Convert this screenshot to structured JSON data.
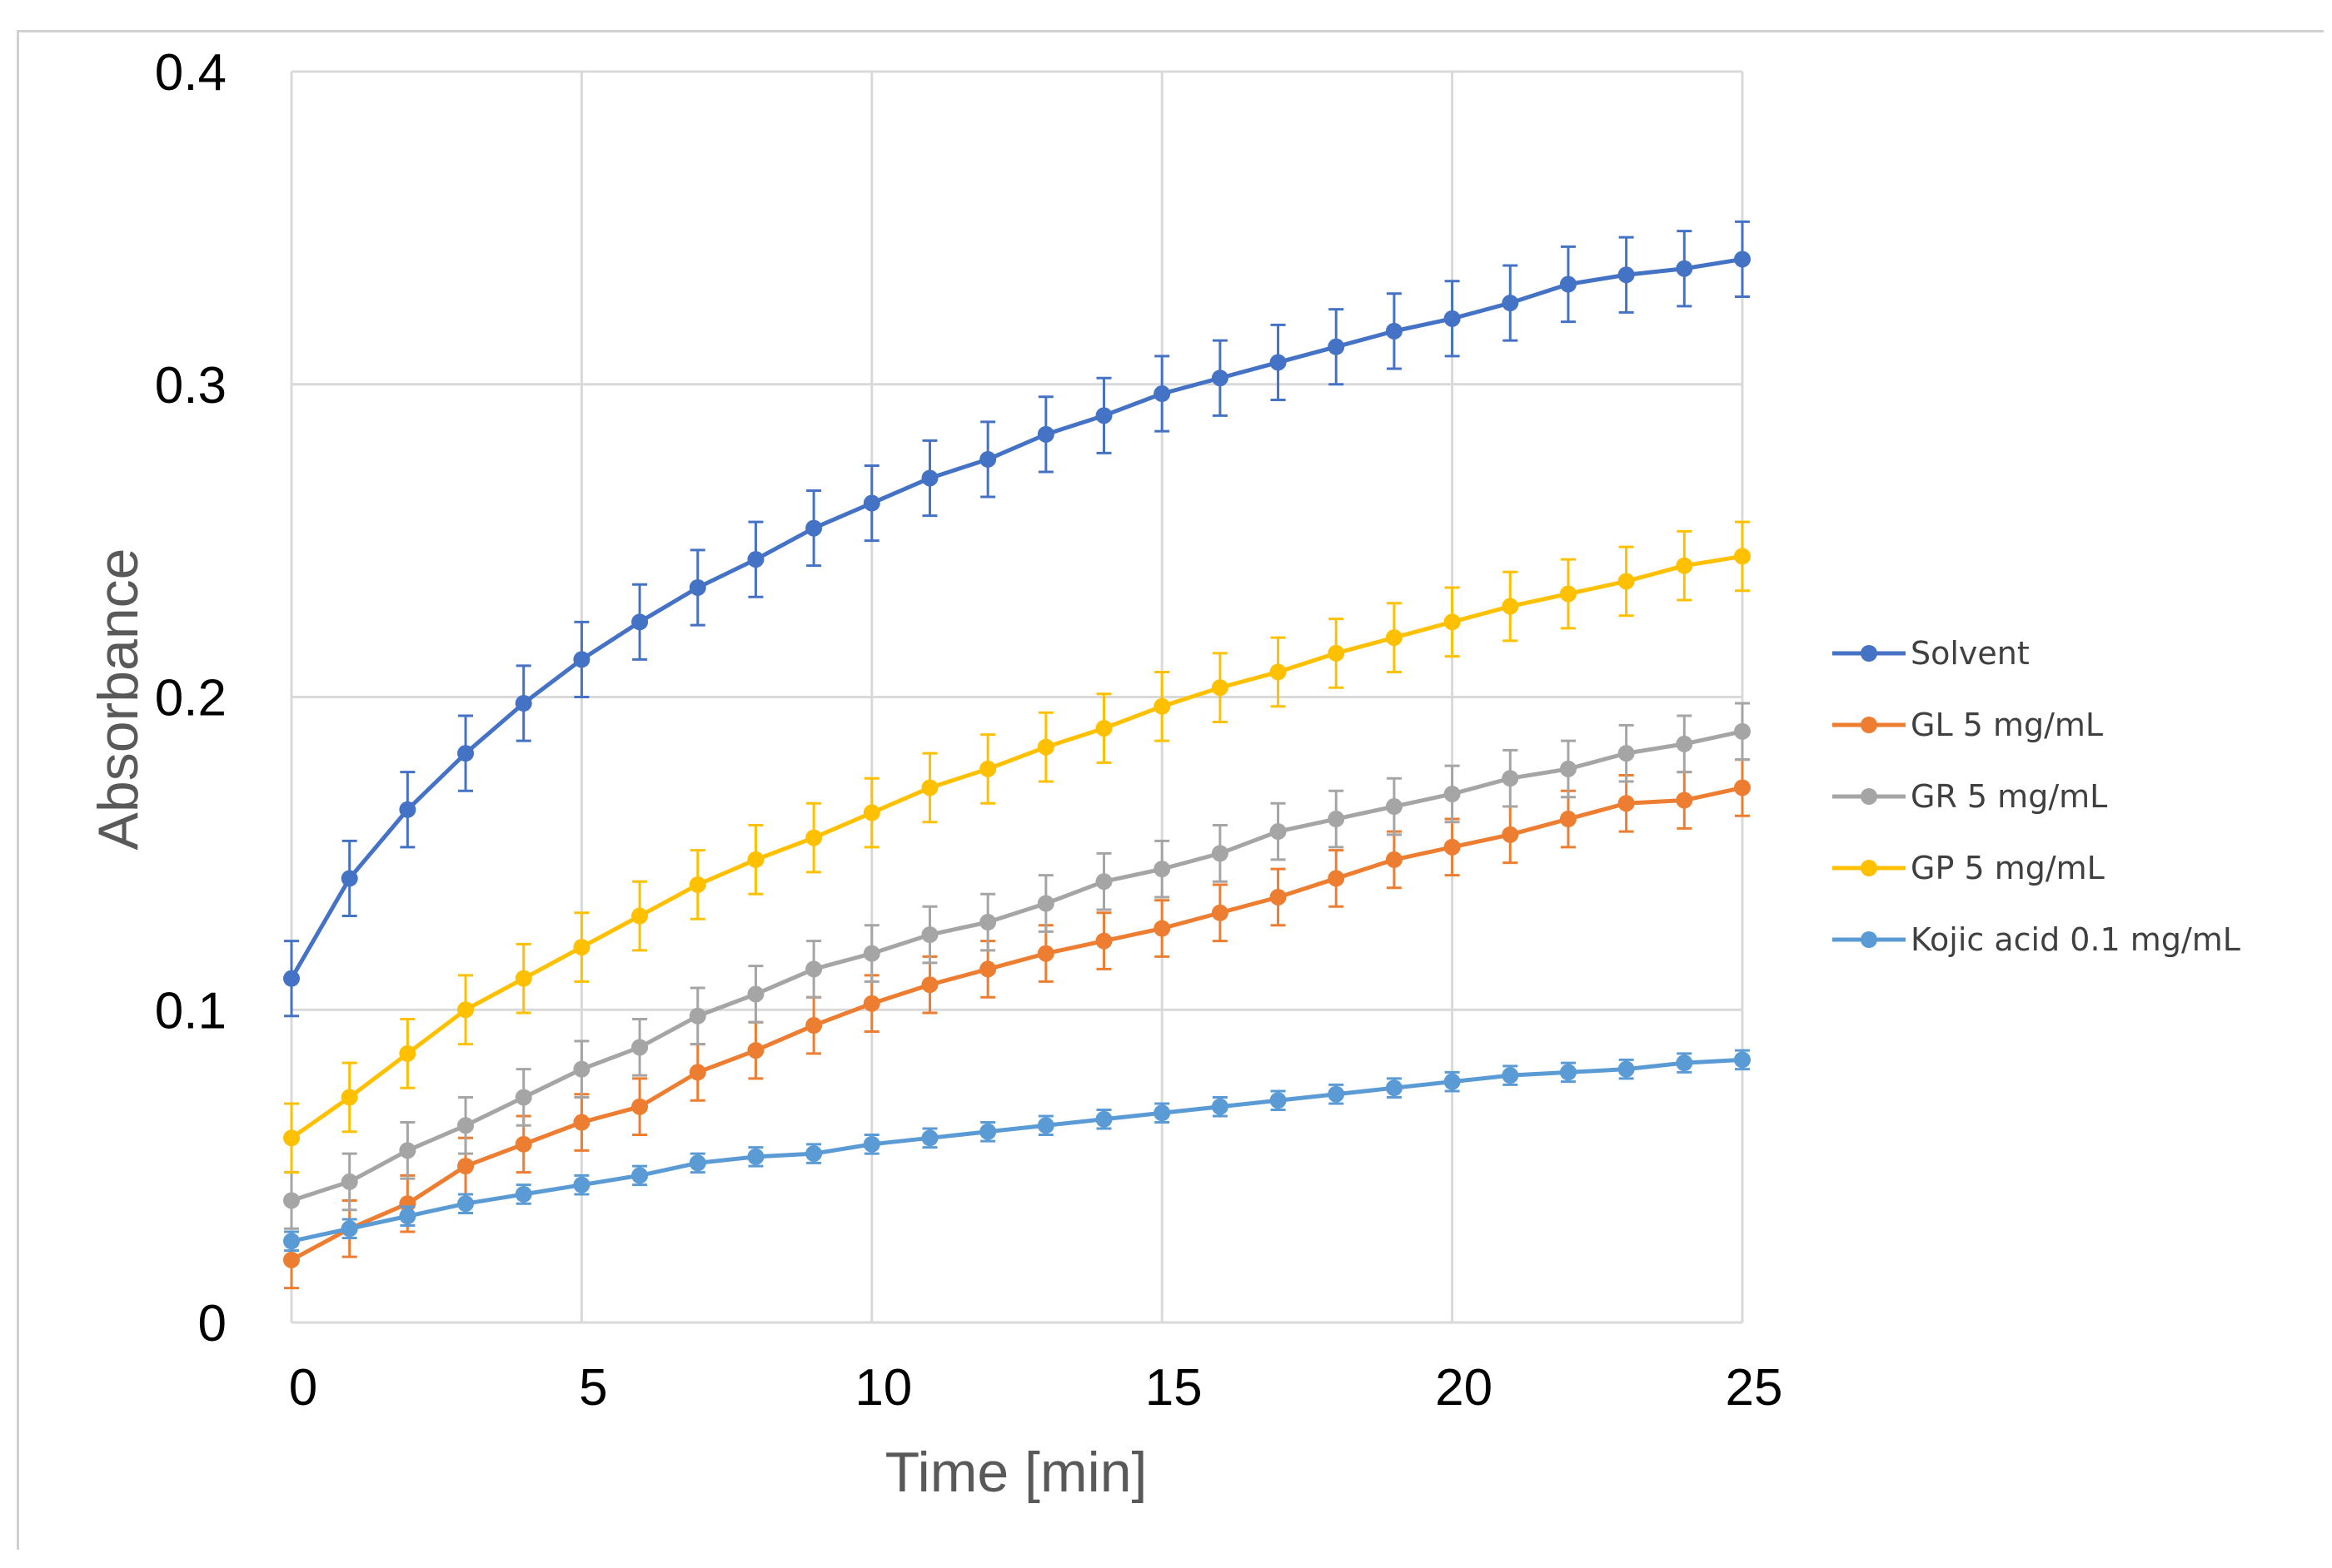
{
  "chart_data": {
    "type": "line",
    "title": "",
    "xlabel": "Time [min]",
    "ylabel": "Absorbance",
    "xlim": [
      0,
      25
    ],
    "ylim": [
      0,
      0.4
    ],
    "xticks": [
      0,
      5,
      10,
      15,
      20,
      25
    ],
    "xtick_labels": [
      "0",
      "5",
      "10",
      "15",
      "20",
      "25"
    ],
    "yticks": [
      0,
      0.1,
      0.2,
      0.3,
      0.4
    ],
    "ytick_labels": [
      "0",
      "0.1",
      "0.2",
      "0.3",
      "0.4"
    ],
    "grid": true,
    "legend_position": "right",
    "x": [
      0,
      1,
      2,
      3,
      4,
      5,
      6,
      7,
      8,
      9,
      10,
      11,
      12,
      13,
      14,
      15,
      16,
      17,
      18,
      19,
      20,
      21,
      22,
      23,
      24,
      25
    ],
    "series": [
      {
        "name": "Solvent",
        "color": "#4472C4",
        "values": [
          0.11,
          0.142,
          0.164,
          0.182,
          0.198,
          0.212,
          0.224,
          0.235,
          0.244,
          0.254,
          0.262,
          0.27,
          0.276,
          0.284,
          0.29,
          0.297,
          0.302,
          0.307,
          0.312,
          0.317,
          0.321,
          0.326,
          0.332,
          0.335,
          0.337,
          0.34
        ],
        "error": 0.012
      },
      {
        "name": "GL 5 mg/mL",
        "color": "#ED7D31",
        "values": [
          0.02,
          0.03,
          0.038,
          0.05,
          0.057,
          0.064,
          0.069,
          0.08,
          0.087,
          0.095,
          0.102,
          0.108,
          0.113,
          0.118,
          0.122,
          0.126,
          0.131,
          0.136,
          0.142,
          0.148,
          0.152,
          0.156,
          0.161,
          0.166,
          0.167,
          0.171
        ],
        "error": 0.009
      },
      {
        "name": "GR 5 mg/mL",
        "color": "#A5A5A5",
        "values": [
          0.039,
          0.045,
          0.055,
          0.063,
          0.072,
          0.081,
          0.088,
          0.098,
          0.105,
          0.113,
          0.118,
          0.124,
          0.128,
          0.134,
          0.141,
          0.145,
          0.15,
          0.157,
          0.161,
          0.165,
          0.169,
          0.174,
          0.177,
          0.182,
          0.185,
          0.189
        ],
        "error": 0.009
      },
      {
        "name": "GP 5 mg/mL",
        "color": "#FFC000",
        "values": [
          0.059,
          0.072,
          0.086,
          0.1,
          0.11,
          0.12,
          0.13,
          0.14,
          0.148,
          0.155,
          0.163,
          0.171,
          0.177,
          0.184,
          0.19,
          0.197,
          0.203,
          0.208,
          0.214,
          0.219,
          0.224,
          0.229,
          0.233,
          0.237,
          0.242,
          0.245
        ],
        "error": 0.011
      },
      {
        "name": "Kojic acid 0.1 mg/mL",
        "color": "#5B9BD5",
        "values": [
          0.026,
          0.03,
          0.034,
          0.038,
          0.041,
          0.044,
          0.047,
          0.051,
          0.053,
          0.054,
          0.057,
          0.059,
          0.061,
          0.063,
          0.065,
          0.067,
          0.069,
          0.071,
          0.073,
          0.075,
          0.077,
          0.079,
          0.08,
          0.081,
          0.083,
          0.084
        ],
        "error": 0.003
      }
    ]
  }
}
